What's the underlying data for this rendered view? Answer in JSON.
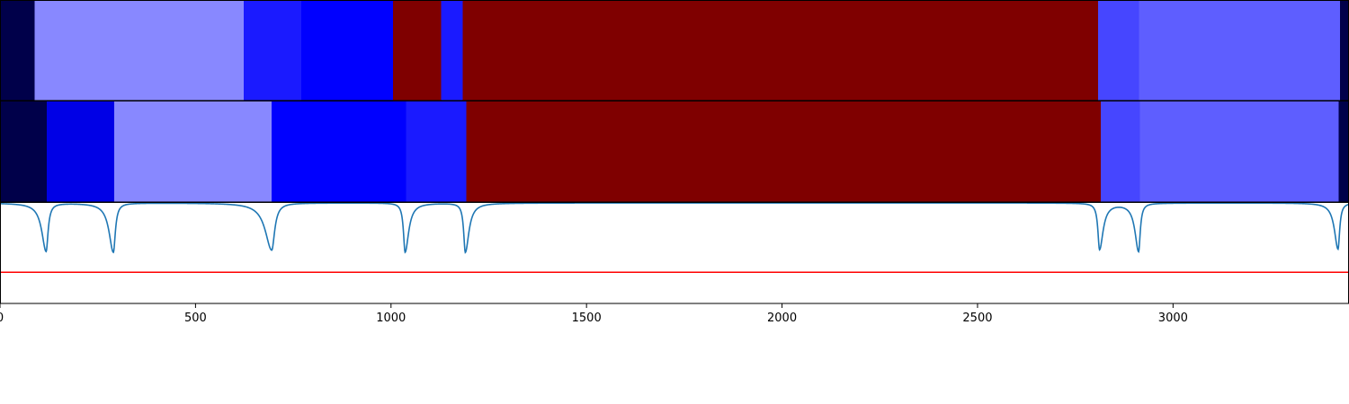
{
  "chart_data": {
    "type": "heatmap",
    "x_range": [
      0,
      3450
    ],
    "x_ticks": [
      0,
      500,
      1000,
      1500,
      2000,
      2500,
      3000
    ],
    "tracks": [
      {
        "segments": [
          {
            "start": 0,
            "end": 88,
            "color": "#00004a"
          },
          {
            "start": 88,
            "end": 623,
            "color": "#8888ff"
          },
          {
            "start": 623,
            "end": 770,
            "color": "#1a1aff"
          },
          {
            "start": 770,
            "end": 1005,
            "color": "#0000ff"
          },
          {
            "start": 1005,
            "end": 1128,
            "color": "#7f0000"
          },
          {
            "start": 1128,
            "end": 1183,
            "color": "#1a1aff"
          },
          {
            "start": 1183,
            "end": 2808,
            "color": "#7f0000"
          },
          {
            "start": 2808,
            "end": 2913,
            "color": "#4646ff"
          },
          {
            "start": 2913,
            "end": 3427,
            "color": "#5e5eff"
          },
          {
            "start": 3427,
            "end": 3450,
            "color": "#00004a"
          }
        ]
      },
      {
        "segments": [
          {
            "start": 0,
            "end": 120,
            "color": "#00004a"
          },
          {
            "start": 120,
            "end": 292,
            "color": "#0000e6"
          },
          {
            "start": 292,
            "end": 695,
            "color": "#8888ff"
          },
          {
            "start": 695,
            "end": 1038,
            "color": "#0000ff"
          },
          {
            "start": 1038,
            "end": 1192,
            "color": "#1a1aff"
          },
          {
            "start": 1192,
            "end": 2815,
            "color": "#7f0000"
          },
          {
            "start": 2815,
            "end": 2915,
            "color": "#4646ff"
          },
          {
            "start": 2915,
            "end": 3424,
            "color": "#5e5eff"
          },
          {
            "start": 3424,
            "end": 3450,
            "color": "#00004a"
          }
        ]
      }
    ],
    "signal": {
      "color": "#1f77b4",
      "y_range": [
        0,
        1
      ],
      "baseline": 1.0,
      "dips": [
        {
          "x": 118,
          "depth": 0.48,
          "width": 6,
          "tail": "left"
        },
        {
          "x": 290,
          "depth": 0.49,
          "width": 6,
          "tail": "left"
        },
        {
          "x": 695,
          "depth": 0.47,
          "width": 9,
          "tail": "left"
        },
        {
          "x": 1036,
          "depth": 0.49,
          "width": 5,
          "tail": "right"
        },
        {
          "x": 1190,
          "depth": 0.49,
          "width": 5,
          "tail": "right"
        },
        {
          "x": 2812,
          "depth": 0.46,
          "width": 5,
          "tail": "right"
        },
        {
          "x": 2912,
          "depth": 0.48,
          "width": 5,
          "tail": "left"
        },
        {
          "x": 3422,
          "depth": 0.46,
          "width": 5,
          "tail": "left"
        }
      ],
      "threshold": 0.31,
      "threshold_color": "#ff0000"
    },
    "grid": false,
    "legend": "none"
  }
}
